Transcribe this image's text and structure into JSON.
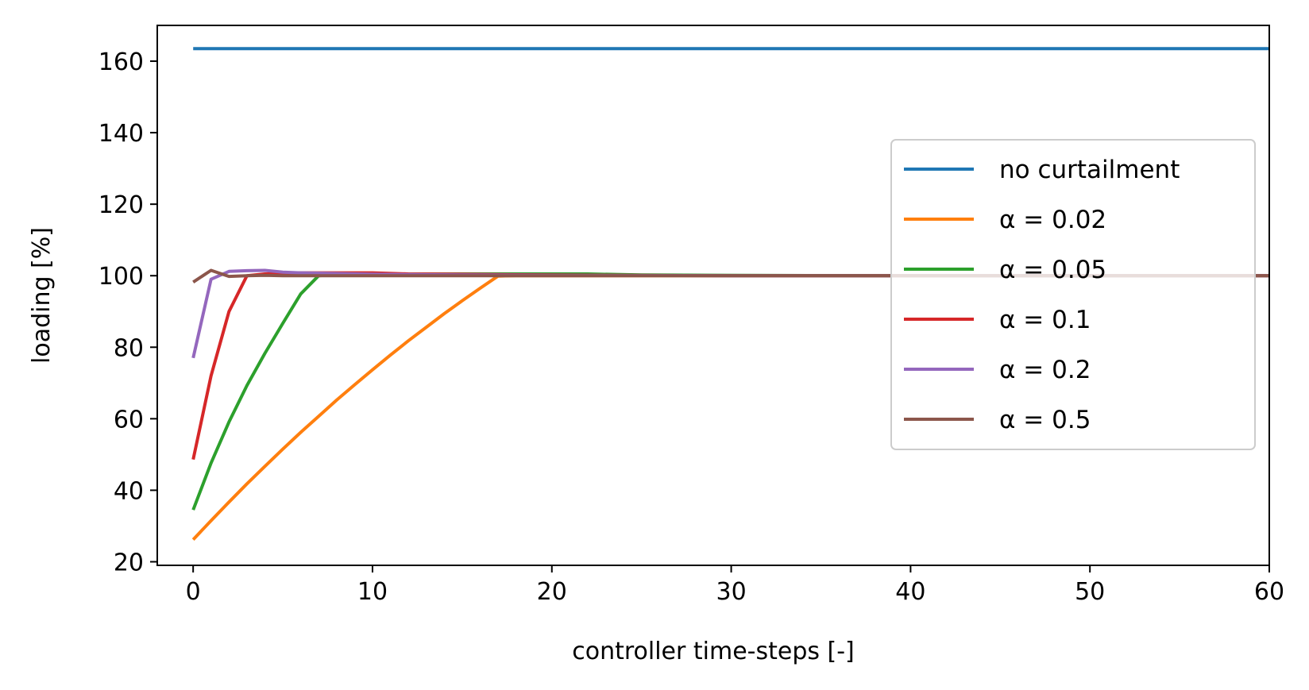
{
  "chart_data": {
    "type": "line",
    "title": "",
    "xlabel": "controller time-steps [-]",
    "ylabel": "loading [%]",
    "xlim": [
      -2,
      60
    ],
    "ylim": [
      19,
      170
    ],
    "x_ticks": [
      0,
      10,
      20,
      30,
      40,
      50,
      60
    ],
    "x_tick_labels": [
      "0",
      "10",
      "20",
      "30",
      "40",
      "50",
      "60"
    ],
    "y_ticks": [
      20,
      40,
      60,
      80,
      100,
      120,
      140,
      160
    ],
    "y_tick_labels": [
      "20",
      "40",
      "60",
      "80",
      "100",
      "120",
      "140",
      "160"
    ],
    "grid": false,
    "legend_position": "center-right",
    "series": [
      {
        "name": "no curtailment",
        "color": "#1f77b4",
        "x": [
          0,
          60
        ],
        "values": [
          163.5,
          163.5
        ]
      },
      {
        "name": "α = 0.02",
        "color": "#ff7f0e",
        "x": [
          0,
          1,
          2,
          3,
          4,
          5,
          6,
          7,
          8,
          9,
          10,
          11,
          12,
          13,
          14,
          15,
          16,
          17,
          18,
          19,
          20,
          30,
          40,
          50,
          60
        ],
        "values": [
          26.2,
          31.5,
          36.7,
          41.8,
          46.7,
          51.5,
          56.2,
          60.7,
          65.2,
          69.5,
          73.7,
          77.8,
          81.8,
          85.6,
          89.4,
          93.0,
          96.5,
          99.9,
          100.0,
          100.0,
          100.0,
          100.0,
          100.0,
          100.0,
          100.0
        ]
      },
      {
        "name": "α = 0.05",
        "color": "#2ca02c",
        "x": [
          0,
          1,
          2,
          3,
          4,
          5,
          6,
          7,
          8,
          10,
          15,
          20,
          22,
          25,
          30,
          40,
          50,
          60
        ],
        "values": [
          34.5,
          47.6,
          59.1,
          69.3,
          78.3,
          86.7,
          94.9,
          100.0,
          100.3,
          100.4,
          100.5,
          100.5,
          100.5,
          100.2,
          100.1,
          100.0,
          100.0,
          100.0
        ]
      },
      {
        "name": "α = 0.1",
        "color": "#d62728",
        "x": [
          0,
          1,
          2,
          3,
          4,
          5,
          6,
          8,
          10,
          12,
          15,
          20,
          30,
          40,
          50,
          60
        ],
        "values": [
          48.6,
          72.0,
          90.0,
          100.0,
          100.5,
          100.7,
          100.8,
          100.8,
          100.8,
          100.5,
          100.4,
          100.2,
          100.0,
          100.0,
          100.0,
          100.0
        ]
      },
      {
        "name": "α = 0.2",
        "color": "#9467bd",
        "x": [
          0,
          1,
          2,
          3,
          4,
          5,
          6,
          8,
          10,
          15,
          20,
          30,
          40,
          50,
          60
        ],
        "values": [
          77.0,
          99.0,
          101.2,
          101.4,
          101.5,
          101.0,
          100.8,
          100.6,
          100.4,
          100.2,
          100.1,
          100.0,
          100.0,
          100.0,
          100.0
        ]
      },
      {
        "name": "α = 0.5",
        "color": "#8c564b",
        "x": [
          0,
          1,
          2,
          3,
          4,
          5,
          6,
          10,
          20,
          30,
          40,
          50,
          60
        ],
        "values": [
          98.2,
          101.5,
          99.8,
          100.0,
          100.1,
          100.0,
          100.0,
          100.0,
          100.0,
          100.0,
          100.0,
          100.0,
          100.0
        ]
      }
    ]
  }
}
